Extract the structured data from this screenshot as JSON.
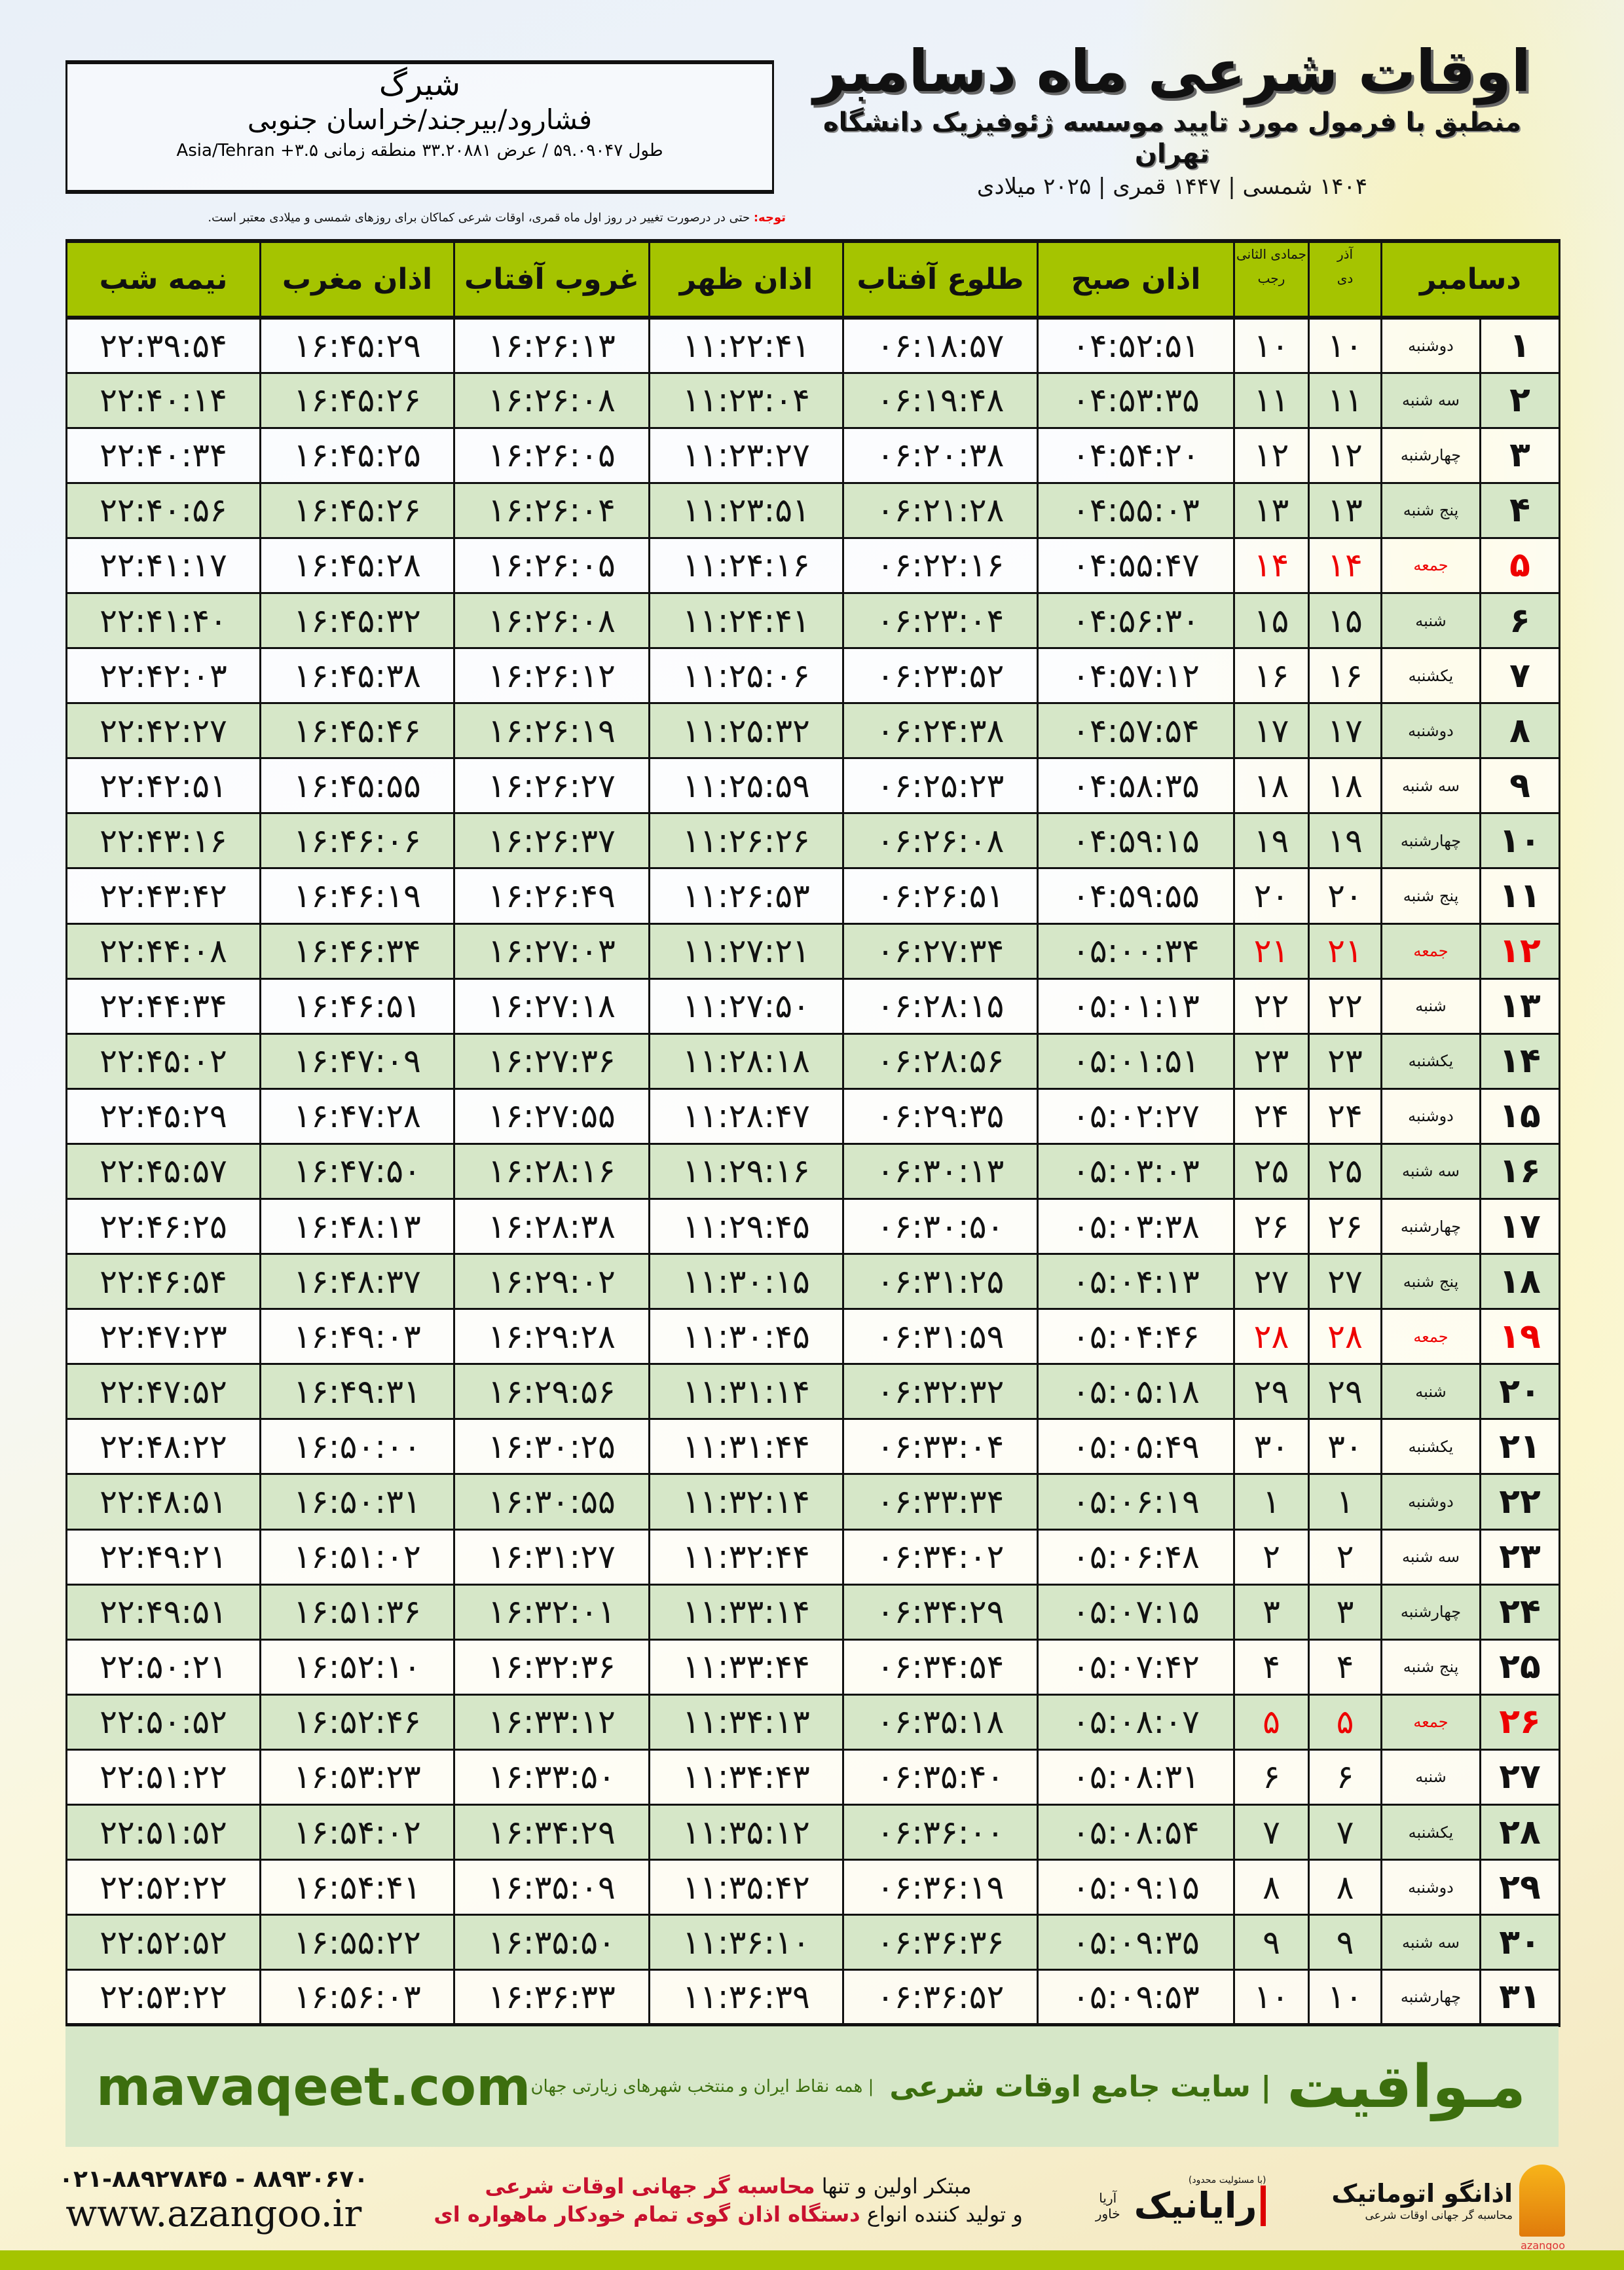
{
  "header": {
    "title": "اوقات شرعی ماه دسامبر",
    "subtitle": "منطبق با فرمول مورد تایید موسسه ژئوفیزیک دانشگاه تهران",
    "years": "۱۴۰۴ شمسی | ۱۴۴۷ قمری | ۲۰۲۵ میلادی"
  },
  "location": {
    "name": "شیرگ",
    "region": "فشارود/بیرجند/خراسان جنوبی",
    "coords": "طول ۵۹.۰۹۰۴۷ / عرض ۳۳.۲۰۸۸۱ منطقه زمانی ۳.۵+ Asia/Tehran"
  },
  "note": {
    "label": "توجه:",
    "text": " حتی در درصورت تغییر در روز اول ماه قمری، اوقات شرعی کماکان برای روزهای شمسی و میلادی معتبر است."
  },
  "table": {
    "headers": {
      "month": "دسامبر",
      "azar": "آذر",
      "dey": "دی",
      "jumada": "جمادی الثانی",
      "rajab": "رجب",
      "fajr": "اذان صبح",
      "sunrise": "طلوع آفتاب",
      "dhuhr": "اذان ظهر",
      "sunset": "غروب آفتاب",
      "maghrib": "اذان مغرب",
      "midnight": "نیمه شب"
    },
    "friday_color": "#e00000",
    "rows": [
      [
        "۱",
        "دوشنبه",
        "۱۰",
        "۱۰",
        "۰۴:۵۲:۵۱",
        "۰۶:۱۸:۵۷",
        "۱۱:۲۲:۴۱",
        "۱۶:۲۶:۱۳",
        "۱۶:۴۵:۲۹",
        "۲۲:۳۹:۵۴"
      ],
      [
        "۲",
        "سه شنبه",
        "۱۱",
        "۱۱",
        "۰۴:۵۳:۳۵",
        "۰۶:۱۹:۴۸",
        "۱۱:۲۳:۰۴",
        "۱۶:۲۶:۰۸",
        "۱۶:۴۵:۲۶",
        "۲۲:۴۰:۱۴"
      ],
      [
        "۳",
        "چهارشنبه",
        "۱۲",
        "۱۲",
        "۰۴:۵۴:۲۰",
        "۰۶:۲۰:۳۸",
        "۱۱:۲۳:۲۷",
        "۱۶:۲۶:۰۵",
        "۱۶:۴۵:۲۵",
        "۲۲:۴۰:۳۴"
      ],
      [
        "۴",
        "پنج شنبه",
        "۱۳",
        "۱۳",
        "۰۴:۵۵:۰۳",
        "۰۶:۲۱:۲۸",
        "۱۱:۲۳:۵۱",
        "۱۶:۲۶:۰۴",
        "۱۶:۴۵:۲۶",
        "۲۲:۴۰:۵۶"
      ],
      [
        "۵",
        "جمعه",
        "۱۴",
        "۱۴",
        "۰۴:۵۵:۴۷",
        "۰۶:۲۲:۱۶",
        "۱۱:۲۴:۱۶",
        "۱۶:۲۶:۰۵",
        "۱۶:۴۵:۲۸",
        "۲۲:۴۱:۱۷"
      ],
      [
        "۶",
        "شنبه",
        "۱۵",
        "۱۵",
        "۰۴:۵۶:۳۰",
        "۰۶:۲۳:۰۴",
        "۱۱:۲۴:۴۱",
        "۱۶:۲۶:۰۸",
        "۱۶:۴۵:۳۲",
        "۲۲:۴۱:۴۰"
      ],
      [
        "۷",
        "یکشنبه",
        "۱۶",
        "۱۶",
        "۰۴:۵۷:۱۲",
        "۰۶:۲۳:۵۲",
        "۱۱:۲۵:۰۶",
        "۱۶:۲۶:۱۲",
        "۱۶:۴۵:۳۸",
        "۲۲:۴۲:۰۳"
      ],
      [
        "۸",
        "دوشنبه",
        "۱۷",
        "۱۷",
        "۰۴:۵۷:۵۴",
        "۰۶:۲۴:۳۸",
        "۱۱:۲۵:۳۲",
        "۱۶:۲۶:۱۹",
        "۱۶:۴۵:۴۶",
        "۲۲:۴۲:۲۷"
      ],
      [
        "۹",
        "سه شنبه",
        "۱۸",
        "۱۸",
        "۰۴:۵۸:۳۵",
        "۰۶:۲۵:۲۳",
        "۱۱:۲۵:۵۹",
        "۱۶:۲۶:۲۷",
        "۱۶:۴۵:۵۵",
        "۲۲:۴۲:۵۱"
      ],
      [
        "۱۰",
        "چهارشنبه",
        "۱۹",
        "۱۹",
        "۰۴:۵۹:۱۵",
        "۰۶:۲۶:۰۸",
        "۱۱:۲۶:۲۶",
        "۱۶:۲۶:۳۷",
        "۱۶:۴۶:۰۶",
        "۲۲:۴۳:۱۶"
      ],
      [
        "۱۱",
        "پنج شنبه",
        "۲۰",
        "۲۰",
        "۰۴:۵۹:۵۵",
        "۰۶:۲۶:۵۱",
        "۱۱:۲۶:۵۳",
        "۱۶:۲۶:۴۹",
        "۱۶:۴۶:۱۹",
        "۲۲:۴۳:۴۲"
      ],
      [
        "۱۲",
        "جمعه",
        "۲۱",
        "۲۱",
        "۰۵:۰۰:۳۴",
        "۰۶:۲۷:۳۴",
        "۱۱:۲۷:۲۱",
        "۱۶:۲۷:۰۳",
        "۱۶:۴۶:۳۴",
        "۲۲:۴۴:۰۸"
      ],
      [
        "۱۳",
        "شنبه",
        "۲۲",
        "۲۲",
        "۰۵:۰۱:۱۳",
        "۰۶:۲۸:۱۵",
        "۱۱:۲۷:۵۰",
        "۱۶:۲۷:۱۸",
        "۱۶:۴۶:۵۱",
        "۲۲:۴۴:۳۴"
      ],
      [
        "۱۴",
        "یکشنبه",
        "۲۳",
        "۲۳",
        "۰۵:۰۱:۵۱",
        "۰۶:۲۸:۵۶",
        "۱۱:۲۸:۱۸",
        "۱۶:۲۷:۳۶",
        "۱۶:۴۷:۰۹",
        "۲۲:۴۵:۰۲"
      ],
      [
        "۱۵",
        "دوشنبه",
        "۲۴",
        "۲۴",
        "۰۵:۰۲:۲۷",
        "۰۶:۲۹:۳۵",
        "۱۱:۲۸:۴۷",
        "۱۶:۲۷:۵۵",
        "۱۶:۴۷:۲۸",
        "۲۲:۴۵:۲۹"
      ],
      [
        "۱۶",
        "سه شنبه",
        "۲۵",
        "۲۵",
        "۰۵:۰۳:۰۳",
        "۰۶:۳۰:۱۳",
        "۱۱:۲۹:۱۶",
        "۱۶:۲۸:۱۶",
        "۱۶:۴۷:۵۰",
        "۲۲:۴۵:۵۷"
      ],
      [
        "۱۷",
        "چهارشنبه",
        "۲۶",
        "۲۶",
        "۰۵:۰۳:۳۸",
        "۰۶:۳۰:۵۰",
        "۱۱:۲۹:۴۵",
        "۱۶:۲۸:۳۸",
        "۱۶:۴۸:۱۳",
        "۲۲:۴۶:۲۵"
      ],
      [
        "۱۸",
        "پنج شنبه",
        "۲۷",
        "۲۷",
        "۰۵:۰۴:۱۳",
        "۰۶:۳۱:۲۵",
        "۱۱:۳۰:۱۵",
        "۱۶:۲۹:۰۲",
        "۱۶:۴۸:۳۷",
        "۲۲:۴۶:۵۴"
      ],
      [
        "۱۹",
        "جمعه",
        "۲۸",
        "۲۸",
        "۰۵:۰۴:۴۶",
        "۰۶:۳۱:۵۹",
        "۱۱:۳۰:۴۵",
        "۱۶:۲۹:۲۸",
        "۱۶:۴۹:۰۳",
        "۲۲:۴۷:۲۳"
      ],
      [
        "۲۰",
        "شنبه",
        "۲۹",
        "۲۹",
        "۰۵:۰۵:۱۸",
        "۰۶:۳۲:۳۲",
        "۱۱:۳۱:۱۴",
        "۱۶:۲۹:۵۶",
        "۱۶:۴۹:۳۱",
        "۲۲:۴۷:۵۲"
      ],
      [
        "۲۱",
        "یکشنبه",
        "۳۰",
        "۳۰",
        "۰۵:۰۵:۴۹",
        "۰۶:۳۳:۰۴",
        "۱۱:۳۱:۴۴",
        "۱۶:۳۰:۲۵",
        "۱۶:۵۰:۰۰",
        "۲۲:۴۸:۲۲"
      ],
      [
        "۲۲",
        "دوشنبه",
        "۱",
        "۱",
        "۰۵:۰۶:۱۹",
        "۰۶:۳۳:۳۴",
        "۱۱:۳۲:۱۴",
        "۱۶:۳۰:۵۵",
        "۱۶:۵۰:۳۱",
        "۲۲:۴۸:۵۱"
      ],
      [
        "۲۳",
        "سه شنبه",
        "۲",
        "۲",
        "۰۵:۰۶:۴۸",
        "۰۶:۳۴:۰۲",
        "۱۱:۳۲:۴۴",
        "۱۶:۳۱:۲۷",
        "۱۶:۵۱:۰۲",
        "۲۲:۴۹:۲۱"
      ],
      [
        "۲۴",
        "چهارشنبه",
        "۳",
        "۳",
        "۰۵:۰۷:۱۵",
        "۰۶:۳۴:۲۹",
        "۱۱:۳۳:۱۴",
        "۱۶:۳۲:۰۱",
        "۱۶:۵۱:۳۶",
        "۲۲:۴۹:۵۱"
      ],
      [
        "۲۵",
        "پنج شنبه",
        "۴",
        "۴",
        "۰۵:۰۷:۴۲",
        "۰۶:۳۴:۵۴",
        "۱۱:۳۳:۴۴",
        "۱۶:۳۲:۳۶",
        "۱۶:۵۲:۱۰",
        "۲۲:۵۰:۲۱"
      ],
      [
        "۲۶",
        "جمعه",
        "۵",
        "۵",
        "۰۵:۰۸:۰۷",
        "۰۶:۳۵:۱۸",
        "۱۱:۳۴:۱۳",
        "۱۶:۳۳:۱۲",
        "۱۶:۵۲:۴۶",
        "۲۲:۵۰:۵۲"
      ],
      [
        "۲۷",
        "شنبه",
        "۶",
        "۶",
        "۰۵:۰۸:۳۱",
        "۰۶:۳۵:۴۰",
        "۱۱:۳۴:۴۳",
        "۱۶:۳۳:۵۰",
        "۱۶:۵۳:۲۳",
        "۲۲:۵۱:۲۲"
      ],
      [
        "۲۸",
        "یکشنبه",
        "۷",
        "۷",
        "۰۵:۰۸:۵۴",
        "۰۶:۳۶:۰۰",
        "۱۱:۳۵:۱۲",
        "۱۶:۳۴:۲۹",
        "۱۶:۵۴:۰۲",
        "۲۲:۵۱:۵۲"
      ],
      [
        "۲۹",
        "دوشنبه",
        "۸",
        "۸",
        "۰۵:۰۹:۱۵",
        "۰۶:۳۶:۱۹",
        "۱۱:۳۵:۴۲",
        "۱۶:۳۵:۰۹",
        "۱۶:۵۴:۴۱",
        "۲۲:۵۲:۲۲"
      ],
      [
        "۳۰",
        "سه شنبه",
        "۹",
        "۹",
        "۰۵:۰۹:۳۵",
        "۰۶:۳۶:۳۶",
        "۱۱:۳۶:۱۰",
        "۱۶:۳۵:۵۰",
        "۱۶:۵۵:۲۲",
        "۲۲:۵۲:۵۲"
      ],
      [
        "۳۱",
        "چهارشنبه",
        "۱۰",
        "۱۰",
        "۰۵:۰۹:۵۳",
        "۰۶:۳۶:۵۲",
        "۱۱:۳۶:۳۹",
        "۱۶:۳۶:۳۳",
        "۱۶:۵۶:۰۳",
        "۲۲:۵۳:۲۲"
      ]
    ]
  },
  "banner": {
    "brand": "مـواقیت",
    "sub": "| سایت جامع اوقات شرعی",
    "sub2": "| همه نقاط ایران و منتخب شهرهای زیارتی جهان",
    "site": "mavaqeet.com",
    "color": "#3c6e0e",
    "bg": "#d6e7c8"
  },
  "footer": {
    "azangoo": {
      "name": "اذانگو اتوماتیک",
      "tag": "محاسبه گر جهانی اوقات شرعی",
      "en": "azangoo"
    },
    "rayanik": {
      "name": "رایانیک",
      "aria": "آریا خاور",
      "small": "(با مسئولیت محدود)"
    },
    "tag1_a": "مبتکر اولین و تنها ",
    "tag1_b": "محاسبه گر جهانی اوقات شرعی",
    "tag2_a": "و تولید کننده انواع ",
    "tag2_b": "دستگاه اذان گوی تمام خودکار ماهواره ای",
    "phone": "۰۲۱-۸۸۹۲۷۸۴۵ - ۸۸۹۳۰۶۷۰",
    "web": "www.azangoo.ir"
  },
  "colors": {
    "header_green": "#a5c400",
    "row_green": "#d6e7c8",
    "accent_red": "#c8102e"
  }
}
